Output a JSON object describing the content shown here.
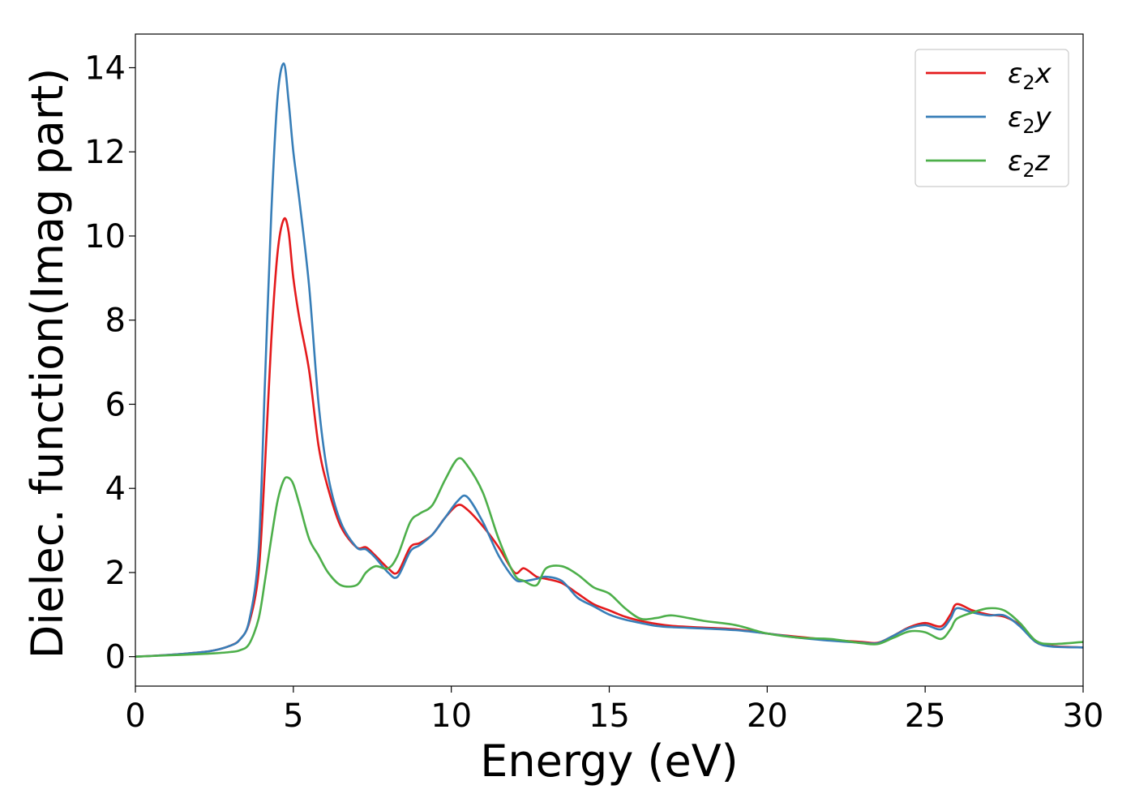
{
  "chart_data": {
    "type": "line",
    "title": "",
    "xlabel": "Energy (eV)",
    "ylabel": "Dielec. function(Imag part)",
    "xlim": [
      0,
      30
    ],
    "ylim": [
      -0.7,
      14.8
    ],
    "xticks": [
      0,
      5,
      10,
      15,
      20,
      25,
      30
    ],
    "yticks": [
      0,
      2,
      4,
      6,
      8,
      10,
      12,
      14
    ],
    "grid": false,
    "legend_position": "top-right",
    "series": [
      {
        "name": "ε₂x",
        "name_parts": {
          "base": "ε",
          "sub": "2",
          "var": "x"
        },
        "color": "#e41a1c",
        "x": [
          0,
          1,
          2,
          2.5,
          3,
          3.3,
          3.6,
          3.9,
          4.1,
          4.3,
          4.5,
          4.7,
          4.85,
          5.0,
          5.2,
          5.5,
          5.8,
          6.1,
          6.5,
          7.0,
          7.3,
          7.6,
          8.0,
          8.3,
          8.7,
          9.0,
          9.4,
          9.8,
          10.2,
          10.5,
          11.0,
          11.5,
          12.0,
          12.3,
          12.7,
          13.0,
          13.5,
          14.0,
          14.5,
          15.0,
          15.5,
          16.0,
          16.5,
          17.0,
          18.0,
          19.0,
          20.0,
          21.0,
          22.0,
          23.0,
          23.5,
          24.0,
          24.5,
          25.0,
          25.5,
          25.8,
          26.0,
          26.5,
          27.0,
          27.5,
          28.0,
          28.5,
          29.0,
          30.0
        ],
        "y": [
          0.0,
          0.04,
          0.1,
          0.15,
          0.26,
          0.4,
          0.8,
          2.0,
          4.5,
          7.5,
          9.6,
          10.4,
          10.1,
          9.0,
          8.0,
          6.8,
          5.0,
          4.0,
          3.1,
          2.6,
          2.6,
          2.4,
          2.1,
          2.0,
          2.6,
          2.7,
          2.9,
          3.3,
          3.6,
          3.5,
          3.1,
          2.6,
          2.0,
          2.1,
          1.9,
          1.85,
          1.75,
          1.5,
          1.25,
          1.1,
          0.95,
          0.85,
          0.78,
          0.73,
          0.69,
          0.65,
          0.55,
          0.47,
          0.4,
          0.35,
          0.33,
          0.5,
          0.7,
          0.8,
          0.72,
          1.0,
          1.25,
          1.1,
          1.0,
          0.95,
          0.75,
          0.35,
          0.25,
          0.22
        ]
      },
      {
        "name": "ε₂y",
        "name_parts": {
          "base": "ε",
          "sub": "2",
          "var": "y"
        },
        "color": "#377eb8",
        "x": [
          0,
          1,
          2,
          2.5,
          3,
          3.3,
          3.6,
          3.9,
          4.1,
          4.3,
          4.5,
          4.7,
          4.85,
          5.0,
          5.2,
          5.5,
          5.8,
          6.1,
          6.5,
          7.0,
          7.3,
          7.6,
          8.0,
          8.3,
          8.7,
          9.0,
          9.4,
          9.8,
          10.2,
          10.5,
          11.0,
          11.5,
          12.0,
          12.3,
          12.7,
          13.0,
          13.5,
          14.0,
          14.5,
          15.0,
          15.5,
          16.0,
          16.5,
          17.0,
          18.0,
          19.0,
          20.0,
          21.0,
          22.0,
          23.0,
          23.5,
          24.0,
          24.5,
          25.0,
          25.5,
          25.8,
          26.0,
          26.5,
          27.0,
          27.5,
          28.0,
          28.5,
          29.0,
          30.0
        ],
        "y": [
          0.0,
          0.04,
          0.1,
          0.15,
          0.26,
          0.4,
          0.85,
          2.5,
          6.5,
          10.5,
          13.3,
          14.1,
          13.2,
          12.0,
          10.8,
          8.8,
          6.0,
          4.3,
          3.2,
          2.6,
          2.55,
          2.35,
          2.0,
          1.9,
          2.5,
          2.65,
          2.9,
          3.3,
          3.7,
          3.8,
          3.2,
          2.4,
          1.85,
          1.8,
          1.85,
          1.9,
          1.8,
          1.4,
          1.2,
          1.0,
          0.88,
          0.8,
          0.73,
          0.7,
          0.67,
          0.63,
          0.55,
          0.45,
          0.38,
          0.33,
          0.32,
          0.5,
          0.68,
          0.75,
          0.65,
          0.9,
          1.15,
          1.05,
          0.98,
          0.98,
          0.72,
          0.35,
          0.24,
          0.22
        ]
      },
      {
        "name": "ε₂z",
        "name_parts": {
          "base": "ε",
          "sub": "2",
          "var": "z"
        },
        "color": "#4daf4a",
        "x": [
          0,
          1,
          2,
          2.5,
          3,
          3.3,
          3.6,
          3.9,
          4.1,
          4.3,
          4.5,
          4.7,
          4.85,
          5.0,
          5.2,
          5.5,
          5.8,
          6.1,
          6.5,
          7.0,
          7.3,
          7.6,
          8.0,
          8.3,
          8.7,
          9.0,
          9.4,
          9.8,
          10.2,
          10.5,
          11.0,
          11.5,
          12.0,
          12.3,
          12.7,
          13.0,
          13.5,
          14.0,
          14.5,
          15.0,
          15.5,
          16.0,
          16.5,
          17.0,
          18.0,
          19.0,
          20.0,
          21.0,
          22.0,
          23.0,
          23.5,
          24.0,
          24.5,
          25.0,
          25.5,
          25.8,
          26.0,
          26.5,
          27.0,
          27.5,
          28.0,
          28.5,
          29.0,
          30.0
        ],
        "y": [
          0.0,
          0.03,
          0.06,
          0.08,
          0.11,
          0.15,
          0.3,
          0.9,
          1.8,
          2.8,
          3.7,
          4.2,
          4.25,
          4.1,
          3.6,
          2.8,
          2.4,
          2.0,
          1.7,
          1.7,
          2.0,
          2.15,
          2.1,
          2.4,
          3.2,
          3.4,
          3.6,
          4.2,
          4.7,
          4.55,
          3.9,
          2.8,
          1.95,
          1.8,
          1.7,
          2.1,
          2.15,
          1.95,
          1.65,
          1.5,
          1.15,
          0.9,
          0.92,
          0.98,
          0.85,
          0.75,
          0.55,
          0.45,
          0.42,
          0.32,
          0.3,
          0.45,
          0.6,
          0.58,
          0.42,
          0.65,
          0.9,
          1.05,
          1.15,
          1.1,
          0.8,
          0.38,
          0.3,
          0.35
        ]
      }
    ]
  }
}
